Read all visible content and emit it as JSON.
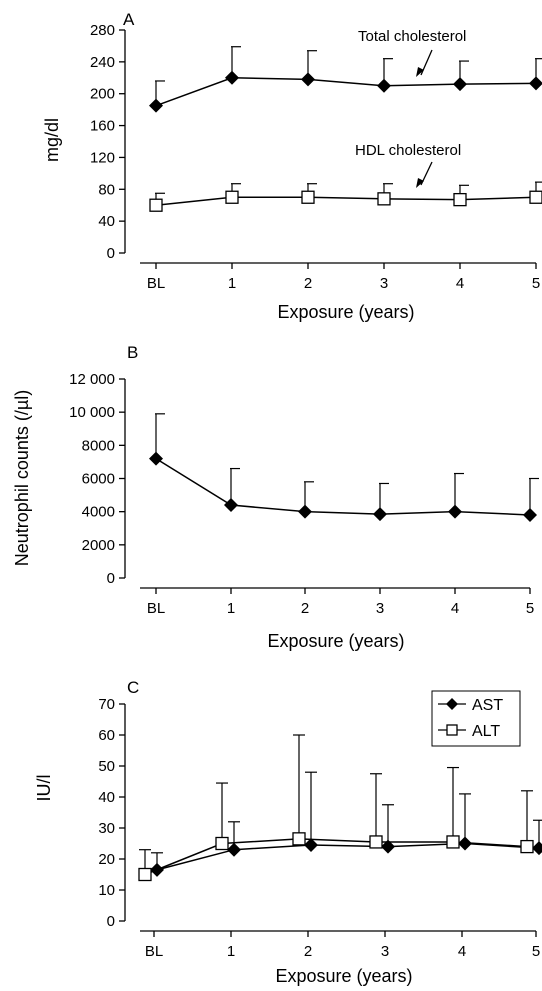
{
  "chart_data": [
    {
      "panel_label": "A",
      "type": "line",
      "x": [
        "BL",
        "1",
        "2",
        "3",
        "4",
        "5"
      ],
      "xlabel": "Exposure (years)",
      "ylabel": "mg/dl",
      "ylim": [
        0,
        280
      ],
      "yticks": [
        "0",
        "40",
        "80",
        "120",
        "160",
        "200",
        "240",
        "280"
      ],
      "series": [
        {
          "name": "Total cholesterol",
          "marker": "filled-diamond",
          "values": [
            185,
            220,
            218,
            210,
            212,
            213
          ],
          "error_upper": [
            216,
            259,
            254,
            244,
            241,
            244
          ]
        },
        {
          "name": "HDL cholesterol",
          "marker": "open-square",
          "values": [
            60,
            70,
            70,
            68,
            67,
            70
          ],
          "error_upper": [
            75,
            87,
            87,
            87,
            85,
            89
          ]
        }
      ],
      "annotations": [
        "Total cholesterol",
        "HDL cholesterol"
      ]
    },
    {
      "panel_label": "B",
      "type": "line",
      "x": [
        "BL",
        "1",
        "2",
        "3",
        "4",
        "5"
      ],
      "xlabel": "Exposure (years)",
      "ylabel": "Neutrophil counts (/µl)",
      "ylim": [
        0,
        12000
      ],
      "yticks": [
        "0",
        "2000",
        "4000",
        "6000",
        "8000",
        "10 000",
        "12 000"
      ],
      "series": [
        {
          "marker": "filled-diamond",
          "values": [
            7200,
            4400,
            4000,
            3850,
            4000,
            3800
          ],
          "error_upper": [
            9900,
            6600,
            5800,
            5700,
            6300,
            6000
          ]
        }
      ]
    },
    {
      "panel_label": "C",
      "type": "line",
      "x": [
        "BL",
        "1",
        "2",
        "3",
        "4",
        "5"
      ],
      "xlabel": "Exposure (years)",
      "ylabel": "IU/l",
      "ylim": [
        0,
        70
      ],
      "yticks": [
        "0",
        "10",
        "20",
        "30",
        "40",
        "50",
        "60",
        "70"
      ],
      "legend_position": "top-right",
      "series": [
        {
          "name": "AST",
          "marker": "filled-diamond",
          "values": [
            16.5,
            23,
            24.5,
            24,
            25,
            23.5
          ],
          "error_upper": [
            22,
            32,
            48,
            37.5,
            41,
            32.5
          ]
        },
        {
          "name": "ALT",
          "marker": "open-square",
          "values": [
            15,
            25,
            26.5,
            25.5,
            25.5,
            24
          ],
          "error_upper": [
            23,
            44.5,
            60,
            47.5,
            49.5,
            42
          ]
        }
      ]
    }
  ]
}
